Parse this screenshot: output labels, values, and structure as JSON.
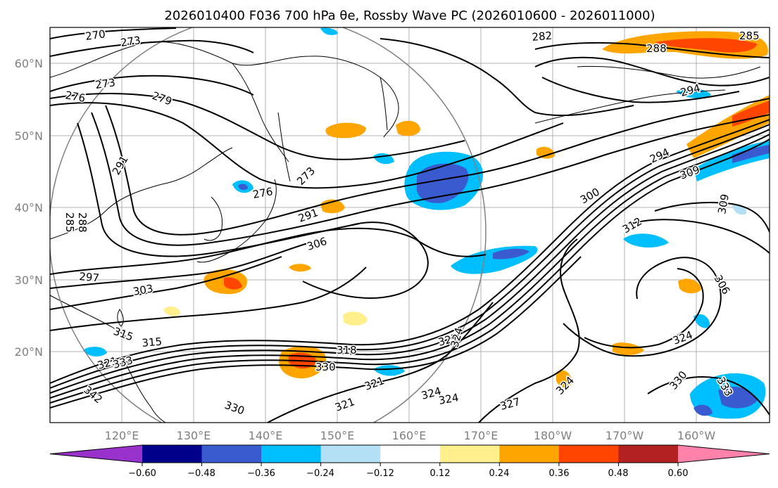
{
  "title": "2026010400 F036 700 hPa θe, Rossby Wave PC (2026010600 - 2026011000)",
  "map": {
    "lat_labels": [
      "60°N",
      "50°N",
      "40°N",
      "30°N",
      "20°N"
    ],
    "lon_labels": [
      "120°E",
      "130°E",
      "140°E",
      "150°E",
      "160°E",
      "170°E",
      "180°W",
      "170°W",
      "160°W"
    ]
  },
  "colorbar": {
    "ticks": [
      "−0.60",
      "−0.48",
      "−0.36",
      "−0.24",
      "−0.12",
      "0.12",
      "0.24",
      "0.36",
      "0.48",
      "0.60"
    ],
    "colors": [
      "#9932CC",
      "#00008B",
      "#3A5BD0",
      "#00BFFF",
      "#B3E0F5",
      "#FFFFFF",
      "#FFF08C",
      "#FFA500",
      "#FF4500",
      "#B22222",
      "#FF82AB"
    ]
  },
  "contour_labels": [
    "270",
    "273",
    "273",
    "276",
    "279",
    "282",
    "285",
    "288",
    "294",
    "291",
    "288",
    "285",
    "291",
    "306",
    "297",
    "303",
    "315",
    "315",
    "321",
    "333",
    "342",
    "330",
    "330",
    "318",
    "321",
    "321",
    "324",
    "327",
    "324",
    "327",
    "324",
    "300",
    "312",
    "309",
    "309",
    "306",
    "324",
    "330",
    "333",
    "324",
    "294",
    "276",
    "273"
  ],
  "fill_colors": {
    "pos_light": "#FFF08C",
    "pos_mid": "#FFA500",
    "pos_strong": "#FF4500",
    "neg_light": "#B3E0F5",
    "neg_mid": "#00BFFF",
    "neg_strong": "#3A5BD0"
  }
}
